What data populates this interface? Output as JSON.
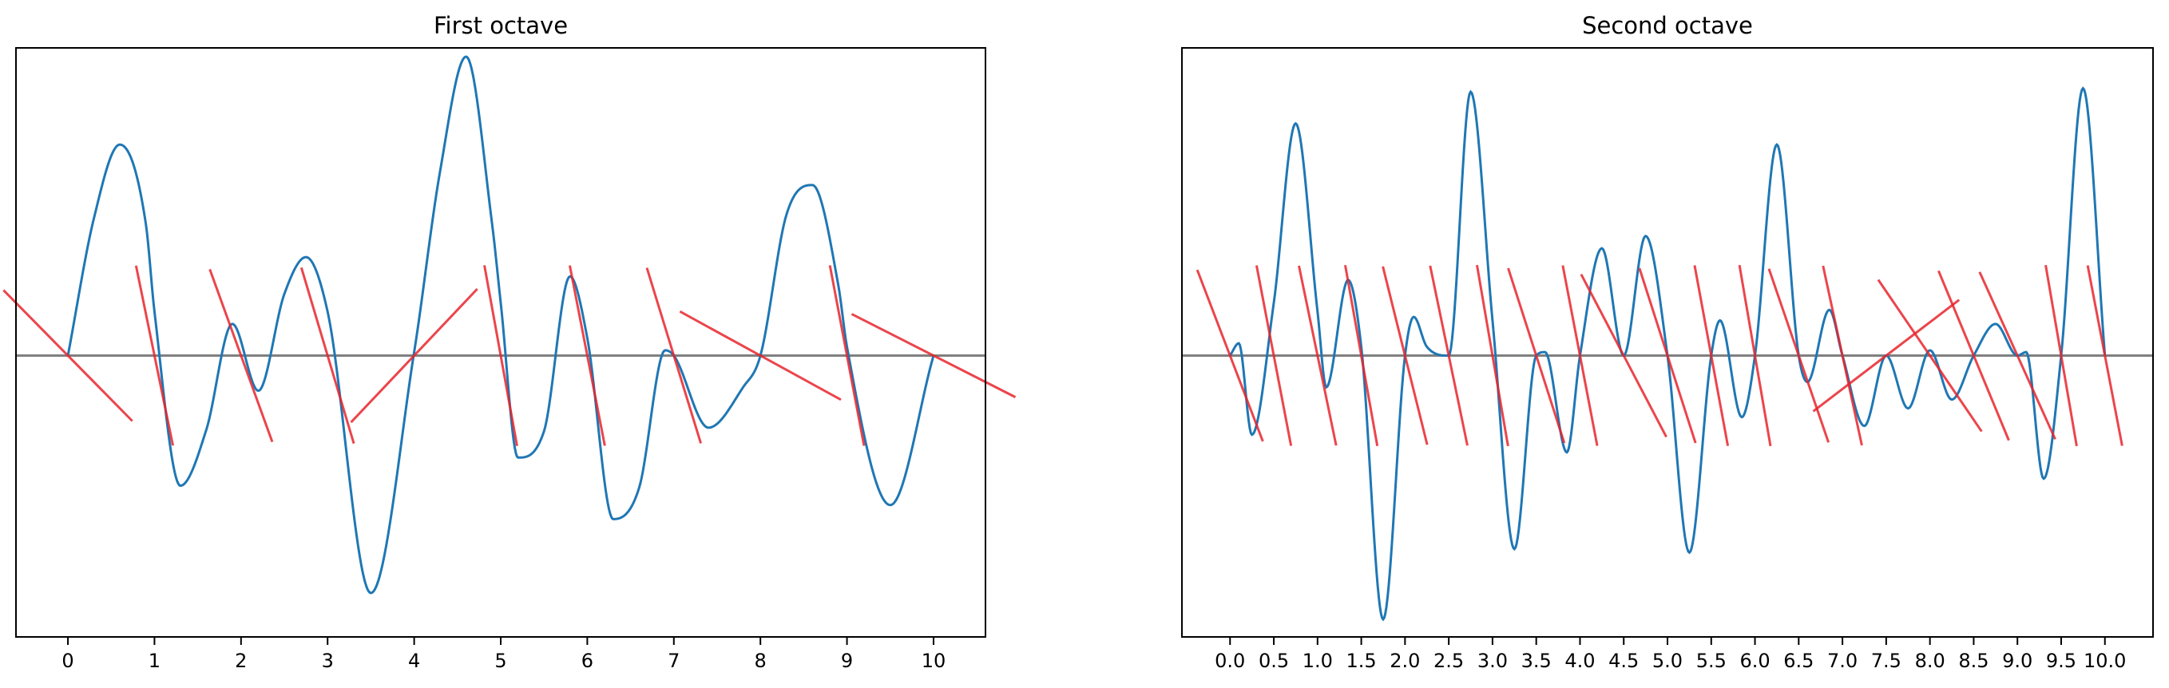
{
  "chart_data": [
    {
      "type": "line",
      "title": "First octave",
      "xlabel": "",
      "ylabel": "",
      "xlim": [
        -0.6,
        10.6
      ],
      "ylim": [
        -1.6,
        1.75
      ],
      "x_ticks": [
        0,
        1,
        2,
        3,
        4,
        5,
        6,
        7,
        8,
        9,
        10
      ],
      "x_tick_labels": [
        "0",
        "1",
        "2",
        "3",
        "4",
        "5",
        "6",
        "7",
        "8",
        "9",
        "10"
      ],
      "y_ticks_shown": false,
      "grid": false,
      "legend": "none",
      "baseline_y": 0,
      "gradients": [
        -0.5,
        -2.4,
        -1.36,
        -1.65,
        0.52,
        -2.72,
        -2.53,
        -1.6,
        -0.27,
        -2.6,
        -0.25
      ],
      "curve": {
        "x": [
          0,
          0.3,
          0.6,
          0.9,
          1.0,
          1.3,
          1.6,
          1.9,
          2.2,
          2.5,
          2.75,
          3.0,
          3.5,
          4.0,
          4.3,
          4.6,
          4.9,
          5.0,
          5.2,
          5.5,
          5.8,
          6.0,
          6.3,
          6.6,
          6.9,
          7.0,
          7.4,
          7.8,
          8.0,
          8.3,
          8.6,
          8.9,
          9.0,
          9.5,
          10.0
        ],
        "y": [
          0,
          0.78,
          1.2,
          0.75,
          0.25,
          -0.74,
          -0.42,
          0.18,
          -0.2,
          0.35,
          0.56,
          0.25,
          -1.35,
          0.02,
          1.05,
          1.7,
          0.75,
          0.3,
          -0.58,
          -0.43,
          0.45,
          0.1,
          -0.93,
          -0.75,
          0.03,
          0,
          -0.41,
          -0.18,
          0,
          0.8,
          0.97,
          0.4,
          0.05,
          -0.85,
          0
        ]
      },
      "colors": {
        "curve": "#1f77b4",
        "gradient": "#e8242b",
        "baseline": "#808080"
      }
    },
    {
      "type": "line",
      "title": "Second octave",
      "xlabel": "",
      "ylabel": "",
      "xlim": [
        -0.55,
        10.55
      ],
      "ylim": [
        -1.6,
        1.75
      ],
      "x_ticks": [
        0,
        0.5,
        1,
        1.5,
        2,
        2.5,
        3,
        3.5,
        4,
        4.5,
        5,
        5.5,
        6,
        6.5,
        7,
        7.5,
        8,
        8.5,
        9,
        9.5,
        10
      ],
      "x_tick_labels": [
        "0.0",
        "0.5",
        "1.0",
        "1.5",
        "2.0",
        "2.5",
        "3.0",
        "3.5",
        "4.0",
        "4.5",
        "5.0",
        "5.5",
        "6.0",
        "6.5",
        "7.0",
        "7.5",
        "8.0",
        "8.5",
        "9.0",
        "9.5",
        "10.0"
      ],
      "y_ticks_shown": false,
      "grid": false,
      "legend": "none",
      "baseline_y": 0,
      "gradients": [
        -1.3,
        -2.6,
        -2.4,
        -2.8,
        -2.0,
        -2.4,
        -2.9,
        -1.55,
        -2.6,
        -0.95,
        -1.55,
        -2.7,
        -2.9,
        -1.45,
        -2.3,
        0.38,
        -0.73,
        -1.2,
        -1.1,
        -2.9,
        -2.6
      ],
      "curve": {
        "x": [
          0,
          0.1,
          0.25,
          0.5,
          0.75,
          1.0,
          1.1,
          1.35,
          1.5,
          1.75,
          2.0,
          2.1,
          2.25,
          2.5,
          2.75,
          3.0,
          3.25,
          3.5,
          3.6,
          3.85,
          4.0,
          4.25,
          4.5,
          4.75,
          5.0,
          5.25,
          5.5,
          5.6,
          5.85,
          6.0,
          6.25,
          6.5,
          6.6,
          6.85,
          7.0,
          7.25,
          7.5,
          7.75,
          8.0,
          8.25,
          8.5,
          8.75,
          9.0,
          9.1,
          9.3,
          9.5,
          9.75,
          10.0
        ],
        "y": [
          0,
          0.07,
          -0.45,
          0.3,
          1.32,
          0.25,
          -0.18,
          0.43,
          0.05,
          -1.5,
          0,
          0.22,
          0.05,
          0,
          1.5,
          0.2,
          -1.1,
          0,
          0.02,
          -0.55,
          0,
          0.61,
          0,
          0.68,
          0,
          -1.12,
          0,
          0.2,
          -0.35,
          0,
          1.2,
          0,
          -0.15,
          0.26,
          0,
          -0.4,
          0,
          -0.3,
          0.03,
          -0.25,
          0,
          0.18,
          0,
          0.02,
          -0.7,
          0,
          1.52,
          0
        ]
      },
      "colors": {
        "curve": "#1f77b4",
        "gradient": "#e8242b",
        "baseline": "#808080"
      }
    }
  ]
}
